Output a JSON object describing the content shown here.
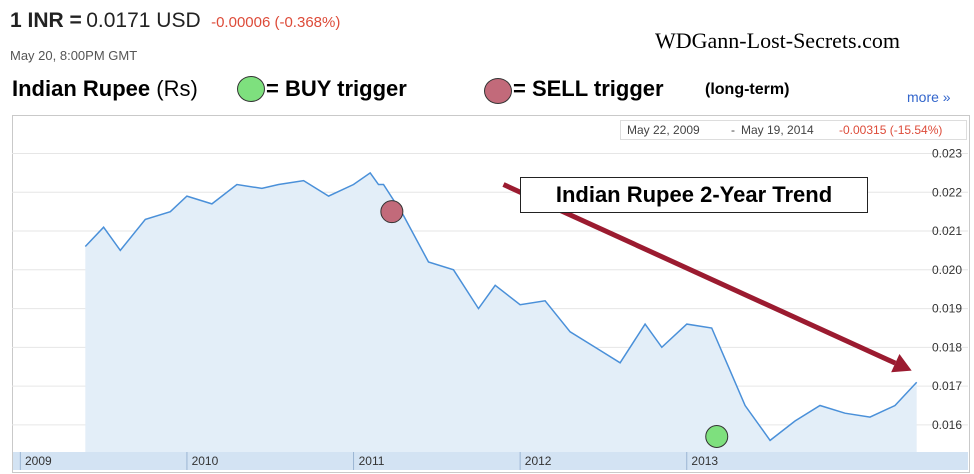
{
  "quote": {
    "pair": "1 INR =",
    "price": "0.0171 USD",
    "change": "-0.00006 (-0.368%)",
    "timestamp": "May 20, 8:00PM GMT"
  },
  "watermark": "WDGann-Lost-Secrets.com",
  "legend": {
    "title_bold": "Indian Rupee",
    "title_unit": "(Rs)",
    "buy_label": "= BUY trigger",
    "sell_label": "= SELL trigger",
    "term_label": "(long-term)",
    "buy_color": "#7ee07e",
    "sell_color": "#c26a7a"
  },
  "more_link": "more »",
  "range": {
    "start": "May 22, 2009",
    "separator": "-",
    "end": "May 19, 2014",
    "change": "-0.00315 (-15.54%)"
  },
  "callout": "Indian Rupee 2-Year Trend",
  "colors": {
    "line": "#4a90d9",
    "area": "#e3eef8",
    "trend_arrow": "#9b1b30",
    "change_red": "#dd4b39",
    "axis_strip": "#d3e3f3"
  },
  "chart_data": {
    "type": "area",
    "x": [
      2009.39,
      2009.5,
      2009.6,
      2009.75,
      2009.9,
      2010.0,
      2010.15,
      2010.3,
      2010.45,
      2010.55,
      2010.7,
      2010.85,
      2011.0,
      2011.1,
      2011.15,
      2011.18,
      2011.3,
      2011.45,
      2011.6,
      2011.75,
      2011.85,
      2012.0,
      2012.15,
      2012.3,
      2012.45,
      2012.6,
      2012.75,
      2012.85,
      2013.0,
      2013.15,
      2013.25,
      2013.35,
      2013.5,
      2013.65,
      2013.8,
      2013.95,
      2014.1,
      2014.25,
      2014.38
    ],
    "values": [
      0.0206,
      0.0211,
      0.0205,
      0.0213,
      0.0215,
      0.0219,
      0.0217,
      0.0222,
      0.0221,
      0.0222,
      0.0223,
      0.0219,
      0.0222,
      0.0225,
      0.0222,
      0.0222,
      0.0214,
      0.0202,
      0.02,
      0.019,
      0.0196,
      0.0191,
      0.0192,
      0.0184,
      0.018,
      0.0176,
      0.0186,
      0.018,
      0.0186,
      0.0185,
      0.0175,
      0.0165,
      0.0156,
      0.0161,
      0.0165,
      0.0163,
      0.0162,
      0.0165,
      0.0171
    ],
    "ylim": [
      0.0153,
      0.0234
    ],
    "yticks": [
      "0.023",
      "0.022",
      "0.021",
      "0.020",
      "0.019",
      "0.018",
      "0.017",
      "0.016"
    ],
    "xtick_labels": [
      "2009",
      "2010",
      "2011",
      "2012",
      "2013"
    ],
    "markers": [
      {
        "type": "sell",
        "x": 2011.23,
        "y": 0.0215
      },
      {
        "type": "buy",
        "x": 2013.18,
        "y": 0.0157
      }
    ],
    "trend_arrow": {
      "from": [
        2011.9,
        0.0222
      ],
      "to": [
        2014.35,
        0.0174
      ]
    },
    "grid": true
  }
}
